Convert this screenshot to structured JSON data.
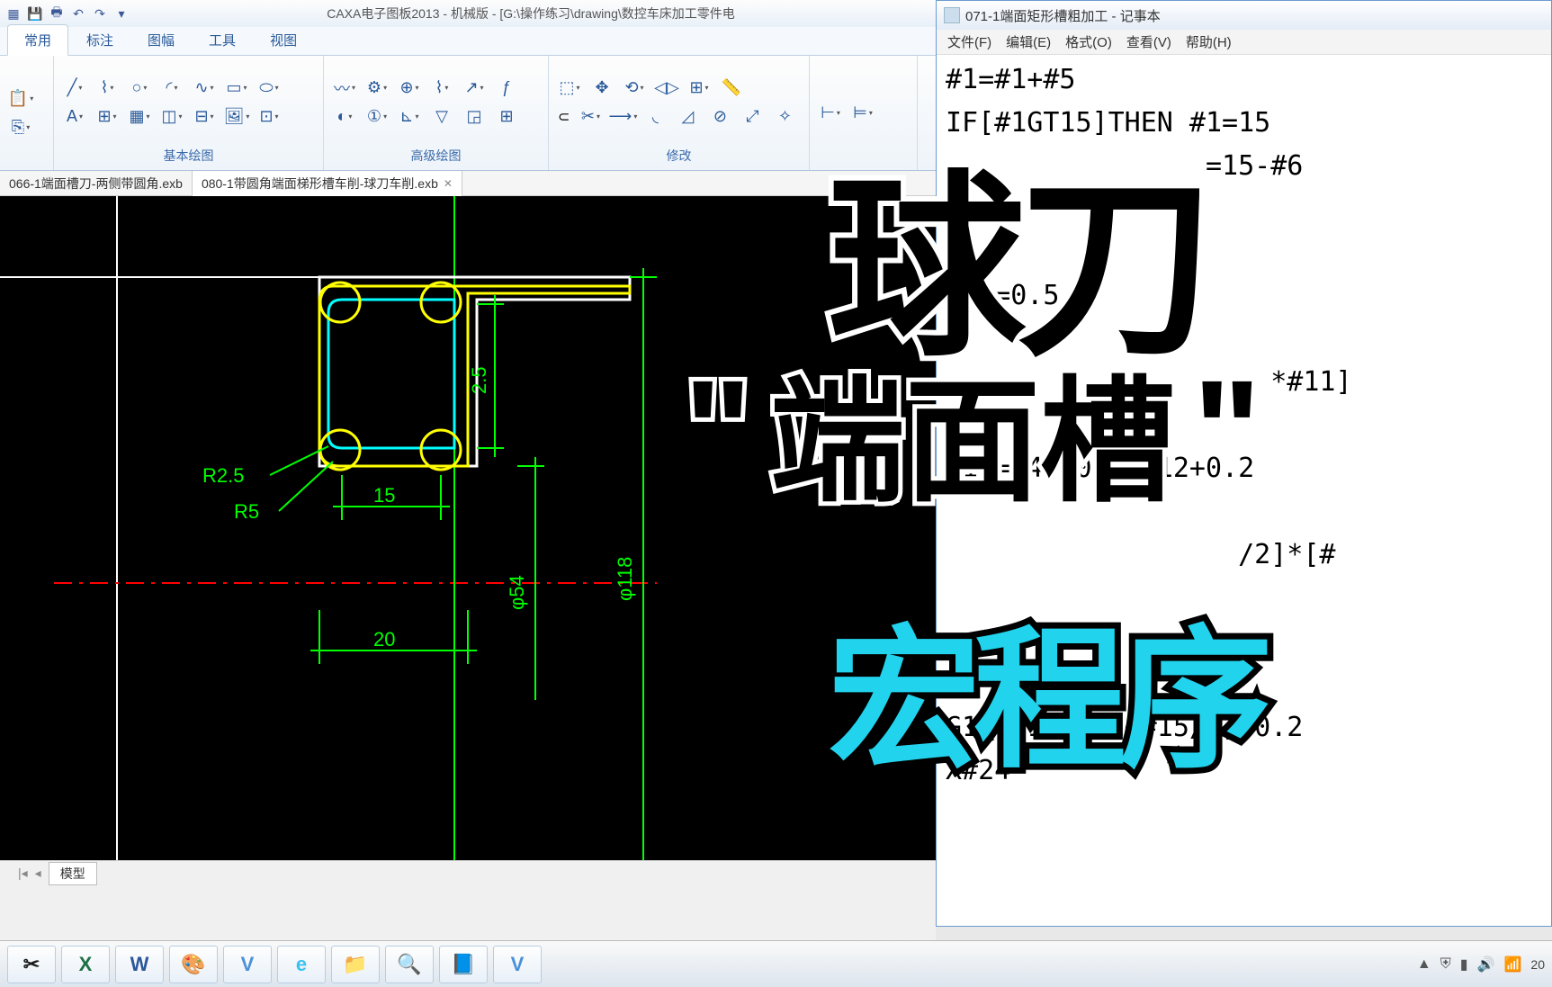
{
  "cad": {
    "title": "CAXA电子图板2013 - 机械版 - [G:\\操作练习\\drawing\\数控车床加工零件电",
    "qat_icons": [
      "new",
      "open",
      "save",
      "print",
      "undo",
      "redo",
      "dropdown"
    ],
    "tabs": [
      "常用",
      "标注",
      "图幅",
      "工具",
      "视图"
    ],
    "active_tab": 0,
    "groups": [
      {
        "label": "基本绘图",
        "rows": [
          [
            "line",
            "poly",
            "circle",
            "arc",
            "spline",
            "rect",
            "ellipse"
          ],
          [
            "text",
            "text2",
            "hatch",
            "block",
            "table",
            "image",
            "point"
          ]
        ]
      },
      {
        "label": "高级绘图",
        "rows": [
          [
            "wave",
            "gear",
            "bolt",
            "spring",
            "arrow",
            "formula"
          ],
          [
            "symbol",
            "balloon",
            "weld",
            "rough",
            "datum",
            "tol"
          ]
        ]
      },
      {
        "label": "修改",
        "rows": [
          [
            "select",
            "move",
            "rotate",
            "mirror",
            "array",
            "measure"
          ],
          [
            "offset",
            "trim",
            "extend",
            "fillet",
            "chamfer",
            "break",
            "scale",
            "explode"
          ]
        ]
      },
      {
        "label": "",
        "rows": [
          [
            "dim1",
            "dim2"
          ],
          []
        ]
      }
    ],
    "doc_tabs": [
      {
        "name": "066-1端面槽刀-两侧带圆角.exb",
        "active": false
      },
      {
        "name": "080-1带圆角端面梯形槽车削-球刀车削.exb",
        "active": true
      }
    ],
    "model_tab": "模型",
    "drawing": {
      "bg": "#000000",
      "line_color": "#00ff00",
      "circle_color": "#ffff00",
      "inner_color": "#00ffff",
      "center_color": "#ff0000",
      "dim_color": "#00ff00",
      "labels": {
        "r25": "R2.5",
        "r5": "R5",
        "d15": "15",
        "d20": "20",
        "d25v": "2.5",
        "phi54": "φ54",
        "phi118": "φ118"
      },
      "dim_font": 20
    }
  },
  "notepad": {
    "title": "071-1端面矩形槽粗加工 - 记事本",
    "menu": [
      "文件(F)",
      "编辑(E)",
      "格式(O)",
      "查看(V)",
      "帮助(H)"
    ],
    "lines": [
      "#1=#1+#5",
      "IF[#1GT15]THEN #1=15",
      "                =15-#6",
      "",
      "",
      "#15=0.5",
      "",
      "                    *#11]",
      "",
      "#14=54+10-2*#12+0.2",
      "",
      "                  /2]*[#",
      "",
      "",
      "",
      "G1Z[-15-#11+#15/2]F0.2",
      "X#24"
    ]
  },
  "overlay": {
    "line1": "球刀",
    "line2": "端面槽",
    "line3": "宏程序"
  },
  "taskbar": {
    "apps": [
      "✂",
      "X",
      "W",
      "🎨",
      "V",
      "e",
      "📁",
      "🔍",
      "📘",
      "V"
    ],
    "app_colors": [
      "#1a1a1a",
      "#1d7044",
      "#2b579a",
      "#f5a623",
      "#4a90d9",
      "#3cc1f0",
      "#f0c060",
      "#5ab0e0",
      "#6aa0d0",
      "#4a90d9"
    ],
    "tray": [
      "▲",
      "🖥",
      "🔋",
      "🔊",
      "📶"
    ],
    "time": "20"
  }
}
